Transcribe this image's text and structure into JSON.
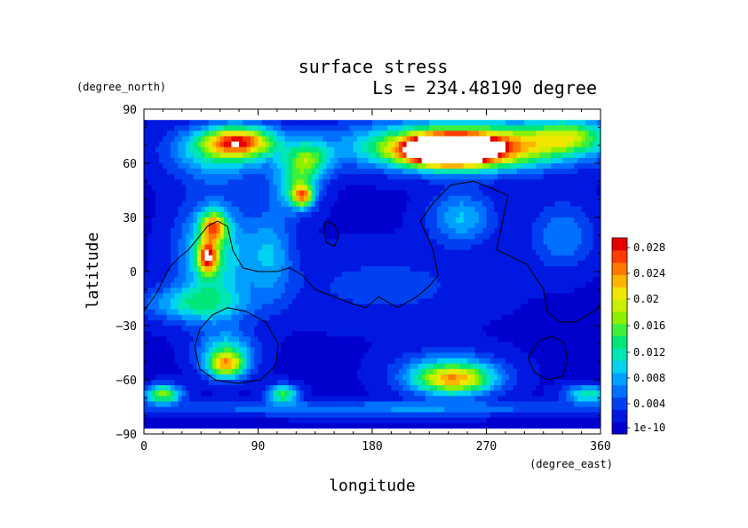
{
  "chart_data": {
    "type": "heatmap",
    "title": "surface stress",
    "subtitle": "Ls = 234.48190 degree",
    "xlabel": "longitude",
    "ylabel": "latitude",
    "x_units": "(degree_east)",
    "y_units": "(degree_north)",
    "xlim": [
      0,
      360
    ],
    "ylim": [
      -90,
      90
    ],
    "x_ticks": [
      "0",
      "90",
      "180",
      "270",
      "360"
    ],
    "y_ticks": [
      "90",
      "60",
      "30",
      "0",
      "−30",
      "−60",
      "−90"
    ],
    "colorbar": {
      "labels": [
        "1e-10",
        "0.004",
        "0.008",
        "0.012",
        "0.016",
        "0.02",
        "0.024",
        "0.028"
      ],
      "colors": [
        "#0000cd",
        "#0018e0",
        "#0040f0",
        "#0070ff",
        "#00a0ff",
        "#00d2f0",
        "#00e6b4",
        "#00e678",
        "#3cf03c",
        "#8cf000",
        "#c8f000",
        "#f0e600",
        "#ffb400",
        "#ff7800",
        "#ff3c00",
        "#e60000"
      ],
      "vmin": 0,
      "vmax": 0.03
    },
    "field_blobs": [
      {
        "lon": 75,
        "lat": 72,
        "rlon": 28,
        "rlat": 8,
        "value": 0.021
      },
      {
        "lon": 60,
        "lat": 66,
        "rlon": 40,
        "rlat": 14,
        "value": 0.01
      },
      {
        "lon": 130,
        "lat": 62,
        "rlon": 18,
        "rlat": 10,
        "value": 0.012
      },
      {
        "lon": 125,
        "lat": 42,
        "rlon": 8,
        "rlat": 6,
        "value": 0.018
      },
      {
        "lon": 120,
        "lat": 48,
        "rlon": 18,
        "rlat": 14,
        "value": 0.01
      },
      {
        "lon": 250,
        "lat": 68,
        "rlon": 65,
        "rlat": 11,
        "value": 0.024
      },
      {
        "lon": 240,
        "lat": 67,
        "rlon": 30,
        "rlat": 7,
        "value": 0.034
      },
      {
        "lon": 335,
        "lat": 75,
        "rlon": 30,
        "rlat": 9,
        "value": 0.012
      },
      {
        "lon": 260,
        "lat": 72,
        "rlon": 110,
        "rlat": 14,
        "value": 0.008
      },
      {
        "lon": 55,
        "lat": 25,
        "rlon": 10,
        "rlat": 8,
        "value": 0.018
      },
      {
        "lon": 50,
        "lat": 8,
        "rlon": 8,
        "rlat": 9,
        "value": 0.02
      },
      {
        "lon": 55,
        "lat": 10,
        "rlon": 28,
        "rlat": 30,
        "value": 0.011
      },
      {
        "lon": 100,
        "lat": 10,
        "rlon": 18,
        "rlat": 25,
        "value": 0.007
      },
      {
        "lon": 250,
        "lat": 30,
        "rlon": 25,
        "rlat": 14,
        "value": 0.008
      },
      {
        "lon": 40,
        "lat": -18,
        "rlon": 40,
        "rlat": 10,
        "value": 0.009
      },
      {
        "lon": 65,
        "lat": -45,
        "rlon": 22,
        "rlat": 12,
        "value": 0.01
      },
      {
        "lon": 65,
        "lat": -52,
        "rlon": 14,
        "rlat": 7,
        "value": 0.016
      },
      {
        "lon": 245,
        "lat": -60,
        "rlon": 30,
        "rlat": 8,
        "value": 0.016
      },
      {
        "lon": 240,
        "lat": -56,
        "rlon": 40,
        "rlat": 12,
        "value": 0.008
      },
      {
        "lon": 15,
        "lat": -68,
        "rlon": 14,
        "rlat": 5,
        "value": 0.017
      },
      {
        "lon": 110,
        "lat": -68,
        "rlon": 12,
        "rlat": 5,
        "value": 0.014
      },
      {
        "lon": 350,
        "lat": -68,
        "rlon": 18,
        "rlat": 5,
        "value": 0.011
      },
      {
        "lon": 180,
        "lat": -76,
        "rlon": 180,
        "rlat": 4,
        "value": 0.006
      },
      {
        "lon": 190,
        "lat": -8,
        "rlon": 80,
        "rlat": 20,
        "value": 0.003
      },
      {
        "lon": 330,
        "lat": 20,
        "rlon": 25,
        "rlat": 18,
        "value": 0.006
      }
    ],
    "contours": [
      [
        [
          0,
          -22
        ],
        [
          10,
          -12
        ],
        [
          20,
          2
        ],
        [
          28,
          8
        ],
        [
          35,
          12
        ],
        [
          42,
          18
        ],
        [
          50,
          25
        ],
        [
          58,
          28
        ],
        [
          66,
          25
        ],
        [
          70,
          12
        ],
        [
          78,
          2
        ],
        [
          90,
          0
        ],
        [
          105,
          0
        ],
        [
          115,
          2
        ],
        [
          125,
          -2
        ],
        [
          135,
          -10
        ],
        [
          150,
          -14
        ],
        [
          165,
          -18
        ],
        [
          175,
          -20
        ],
        [
          185,
          -14
        ],
        [
          200,
          -20
        ],
        [
          215,
          -14
        ],
        [
          225,
          -8
        ],
        [
          232,
          -2
        ],
        [
          228,
          12
        ],
        [
          218,
          28
        ],
        [
          228,
          38
        ],
        [
          242,
          48
        ],
        [
          260,
          50
        ],
        [
          275,
          46
        ],
        [
          287,
          42
        ],
        [
          282,
          25
        ],
        [
          278,
          12
        ],
        [
          290,
          8
        ],
        [
          302,
          4
        ],
        [
          315,
          -10
        ],
        [
          318,
          -22
        ],
        [
          328,
          -28
        ],
        [
          340,
          -28
        ],
        [
          355,
          -22
        ],
        [
          360,
          -18
        ]
      ],
      [
        [
          143,
          28
        ],
        [
          150,
          26
        ],
        [
          154,
          20
        ],
        [
          150,
          14
        ],
        [
          144,
          16
        ],
        [
          142,
          22
        ],
        [
          143,
          28
        ]
      ],
      [
        [
          40,
          -42
        ],
        [
          44,
          -32
        ],
        [
          54,
          -24
        ],
        [
          66,
          -20
        ],
        [
          80,
          -22
        ],
        [
          96,
          -28
        ],
        [
          106,
          -40
        ],
        [
          104,
          -52
        ],
        [
          92,
          -60
        ],
        [
          74,
          -62
        ],
        [
          56,
          -60
        ],
        [
          44,
          -54
        ],
        [
          40,
          -42
        ]
      ],
      [
        [
          306,
          -44
        ],
        [
          312,
          -38
        ],
        [
          322,
          -36
        ],
        [
          332,
          -40
        ],
        [
          334,
          -50
        ],
        [
          330,
          -58
        ],
        [
          318,
          -60
        ],
        [
          308,
          -56
        ],
        [
          303,
          -48
        ],
        [
          306,
          -44
        ]
      ]
    ]
  }
}
